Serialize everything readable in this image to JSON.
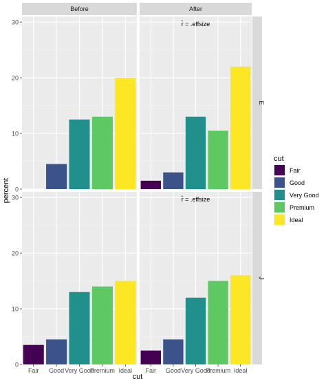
{
  "chart_data": {
    "type": "bar",
    "facet_columns": [
      "Before",
      "After"
    ],
    "facet_rows": [
      "E",
      "J"
    ],
    "categories": [
      "Fair",
      "Good",
      "Very Good",
      "Premium",
      "Ideal"
    ],
    "xlabel": "cut",
    "ylabel": "percent",
    "ylim": [
      0,
      31
    ],
    "y_ticks": [
      0,
      10,
      20,
      30
    ],
    "grid": true,
    "legend": {
      "title": "cut",
      "placement": "right",
      "entries": [
        "Fair",
        "Good",
        "Very Good",
        "Premium",
        "Ideal"
      ]
    },
    "colors": {
      "Fair": "#440154",
      "Good": "#3b528b",
      "Very Good": "#21908c",
      "Premium": "#5ec962",
      "Ideal": "#fde725"
    },
    "panels": [
      {
        "row": "E",
        "column": "Before",
        "values": [
          0,
          4.5,
          12.5,
          13.0,
          20.0
        ],
        "annotation": ""
      },
      {
        "row": "E",
        "column": "After",
        "values": [
          1.5,
          3.0,
          13.0,
          10.5,
          22.0
        ],
        "annotation": "r̂ = .effsize"
      },
      {
        "row": "J",
        "column": "Before",
        "values": [
          3.5,
          4.5,
          13.0,
          14.0,
          15.0
        ],
        "annotation": ""
      },
      {
        "row": "J",
        "column": "After",
        "values": [
          2.5,
          4.5,
          12.0,
          15.0,
          16.0
        ],
        "annotation": "r̂ = .effsize"
      }
    ]
  }
}
